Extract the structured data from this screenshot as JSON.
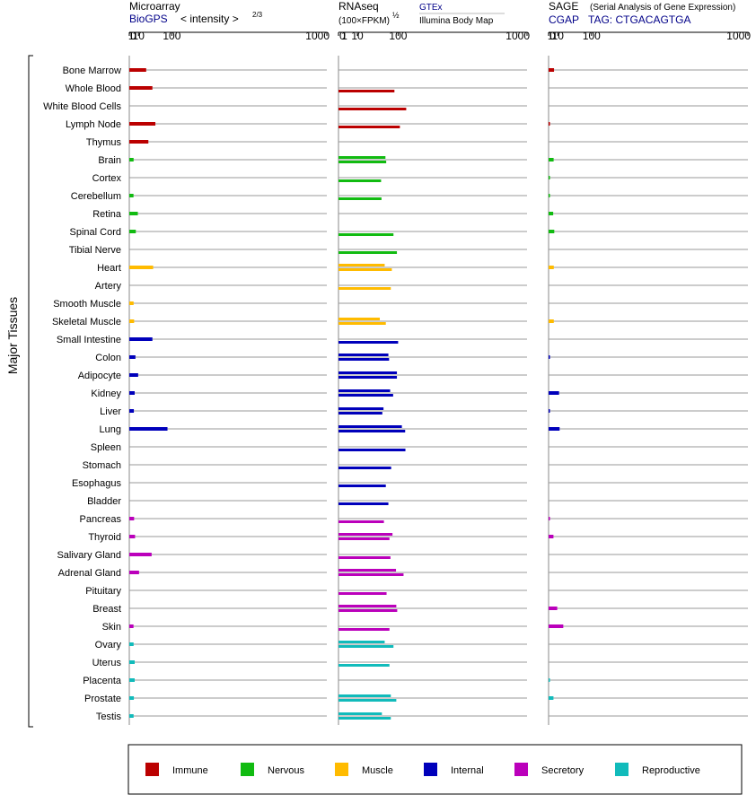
{
  "colors": {
    "Immune": "#bb0000",
    "Nervous": "#11bb11",
    "Muscle": "#ffbb00",
    "Internal": "#0000bb",
    "Secretory": "#bb00bb",
    "Reproductive": "#11bbbb"
  },
  "y_axis_label": "Major Tissues",
  "legend": [
    "Immune",
    "Nervous",
    "Muscle",
    "Internal",
    "Secretory",
    "Reproductive"
  ],
  "chart_data": [
    {
      "type": "bar",
      "title": "Microarray",
      "source": "BioGPS",
      "scale_label": "< intensity >",
      "scale_exponent": "2/3",
      "x_ticks": [
        "0",
        "1",
        "10",
        "100",
        "1000"
      ],
      "xlim": [
        0,
        1000
      ],
      "scale": "power 2/3",
      "categories": [
        "Bone Marrow",
        "Whole Blood",
        "White Blood Cells",
        "Lymph Node",
        "Thymus",
        "Brain",
        "Cortex",
        "Cerebellum",
        "Retina",
        "Spinal Cord",
        "Tibial Nerve",
        "Heart",
        "Artery",
        "Smooth Muscle",
        "Skeletal Muscle",
        "Small Intestine",
        "Colon",
        "Adipocyte",
        "Kidney",
        "Liver",
        "Lung",
        "Spleen",
        "Stomach",
        "Esophagus",
        "Bladder",
        "Pancreas",
        "Thyroid",
        "Salivary Gland",
        "Adrenal Gland",
        "Pituitary",
        "Breast",
        "Skin",
        "Ovary",
        "Uterus",
        "Placenta",
        "Prostate",
        "Testis"
      ],
      "groups": [
        "Immune",
        "Immune",
        "Immune",
        "Immune",
        "Immune",
        "Nervous",
        "Nervous",
        "Nervous",
        "Nervous",
        "Nervous",
        "Nervous",
        "Muscle",
        "Muscle",
        "Muscle",
        "Muscle",
        "Internal",
        "Internal",
        "Internal",
        "Internal",
        "Internal",
        "Internal",
        "Internal",
        "Internal",
        "Internal",
        "Internal",
        "Secretory",
        "Secretory",
        "Secretory",
        "Secretory",
        "Secretory",
        "Secretory",
        "Secretory",
        "Reproductive",
        "Reproductive",
        "Reproductive",
        "Reproductive",
        "Reproductive"
      ],
      "values": [
        [
          25
        ],
        [
          40
        ],
        [],
        [
          48
        ],
        [
          30
        ],
        [
          3.2
        ],
        [],
        [
          3.1
        ],
        [
          9
        ],
        [
          6
        ],
        [],
        [
          42
        ],
        [],
        [
          3.2
        ],
        [
          3.8
        ],
        [
          40
        ],
        [
          5.5
        ],
        [
          9.5
        ],
        [
          4.5
        ],
        [
          3.5
        ],
        [
          85
        ],
        [],
        [],
        [],
        [],
        [
          3.8
        ],
        [
          5
        ],
        [
          38
        ],
        [
          11
        ],
        [],
        [],
        [
          3.1
        ],
        [
          3.2
        ],
        [
          4.5
        ],
        [
          4.5
        ],
        [
          3.5
        ],
        [
          3.2
        ]
      ]
    },
    {
      "type": "bar",
      "title": "RNAseq",
      "scale_label": "(100×FPKM)",
      "scale_exponent": "½",
      "sources": [
        "GTEx",
        "Illumina Body Map"
      ],
      "x_ticks": [
        "0",
        "1",
        "10",
        "100",
        "1000"
      ],
      "xlim": [
        0,
        1000
      ],
      "scale": "square root",
      "categories": [
        "Bone Marrow",
        "Whole Blood",
        "White Blood Cells",
        "Lymph Node",
        "Thymus",
        "Brain",
        "Cortex",
        "Cerebellum",
        "Retina",
        "Spinal Cord",
        "Tibial Nerve",
        "Heart",
        "Artery",
        "Smooth Muscle",
        "Skeletal Muscle",
        "Small Intestine",
        "Colon",
        "Adipocyte",
        "Kidney",
        "Liver",
        "Lung",
        "Spleen",
        "Stomach",
        "Esophagus",
        "Bladder",
        "Pancreas",
        "Thyroid",
        "Salivary Gland",
        "Adrenal Gland",
        "Pituitary",
        "Breast",
        "Skin",
        "Ovary",
        "Uterus",
        "Placenta",
        "Prostate",
        "Testis"
      ],
      "groups": [
        "Immune",
        "Immune",
        "Immune",
        "Immune",
        "Immune",
        "Nervous",
        "Nervous",
        "Nervous",
        "Nervous",
        "Nervous",
        "Nervous",
        "Muscle",
        "Muscle",
        "Muscle",
        "Muscle",
        "Internal",
        "Internal",
        "Internal",
        "Internal",
        "Internal",
        "Internal",
        "Internal",
        "Internal",
        "Internal",
        "Internal",
        "Secretory",
        "Secretory",
        "Secretory",
        "Secretory",
        "Secretory",
        "Secretory",
        "Secretory",
        "Reproductive",
        "Reproductive",
        "Reproductive",
        "Reproductive",
        "Reproductive"
      ],
      "values": [
        [],
        [
          88
        ],
        [
          129
        ],
        [
          106
        ],
        [],
        [
          62,
          64
        ],
        [
          51
        ],
        [
          52
        ],
        [],
        [
          85
        ],
        [
          96
        ],
        [
          60,
          80
        ],
        [
          77
        ],
        [],
        [
          48,
          63
        ],
        [
          100
        ],
        [
          70,
          72
        ],
        [
          96,
          96
        ],
        [
          75,
          84
        ],
        [
          57,
          54
        ],
        [
          113,
          125
        ],
        [
          126
        ],
        [
          78
        ],
        [
          63
        ],
        [
          70
        ],
        [
          58
        ],
        [
          82,
          73
        ],
        [
          76
        ],
        [
          93,
          119
        ],
        [
          65
        ],
        [
          94,
          97
        ],
        [
          73
        ],
        [
          60,
          85
        ],
        [
          73
        ],
        [],
        [
          77,
          94
        ],
        [
          53,
          77
        ]
      ]
    },
    {
      "type": "bar",
      "title": "SAGE",
      "title_note": "(Serial Analysis of Gene Expression)",
      "source": "CGAP",
      "tag": "TAG: CTGACAGTGA",
      "x_ticks": [
        "0",
        "1",
        "10",
        "100",
        "1000"
      ],
      "xlim": [
        0,
        1000
      ],
      "scale": "power 2/3",
      "categories": [
        "Bone Marrow",
        "Whole Blood",
        "White Blood Cells",
        "Lymph Node",
        "Thymus",
        "Brain",
        "Cortex",
        "Cerebellum",
        "Retina",
        "Spinal Cord",
        "Tibial Nerve",
        "Heart",
        "Artery",
        "Smooth Muscle",
        "Skeletal Muscle",
        "Small Intestine",
        "Colon",
        "Adipocyte",
        "Kidney",
        "Liver",
        "Lung",
        "Spleen",
        "Stomach",
        "Esophagus",
        "Bladder",
        "Pancreas",
        "Thyroid",
        "Salivary Gland",
        "Adrenal Gland",
        "Pituitary",
        "Breast",
        "Skin",
        "Ovary",
        "Uterus",
        "Placenta",
        "Prostate",
        "Testis"
      ],
      "groups": [
        "Immune",
        "Immune",
        "Immune",
        "Immune",
        "Immune",
        "Nervous",
        "Nervous",
        "Nervous",
        "Nervous",
        "Nervous",
        "Nervous",
        "Muscle",
        "Muscle",
        "Muscle",
        "Muscle",
        "Internal",
        "Internal",
        "Internal",
        "Internal",
        "Internal",
        "Internal",
        "Internal",
        "Internal",
        "Internal",
        "Internal",
        "Secretory",
        "Secretory",
        "Secretory",
        "Secretory",
        "Secretory",
        "Secretory",
        "Secretory",
        "Reproductive",
        "Reproductive",
        "Reproductive",
        "Reproductive",
        "Reproductive"
      ],
      "values": [
        [
          4.5
        ],
        [],
        [],
        [
          0.03
        ],
        [],
        [
          4
        ],
        [
          0.02
        ],
        [
          0.02
        ],
        [
          3.5
        ],
        [
          4.8
        ],
        [],
        [
          4.2
        ],
        [],
        [],
        [
          4.2
        ],
        [],
        [
          0.03
        ],
        [],
        [
          12
        ],
        [
          0.03
        ],
        [
          13
        ],
        [],
        [],
        [],
        [],
        [
          0.03
        ],
        [
          3.8
        ],
        [],
        [],
        [],
        [
          9
        ],
        [
          20
        ],
        [],
        [],
        [
          0.02
        ],
        [
          3.8
        ],
        []
      ]
    }
  ]
}
